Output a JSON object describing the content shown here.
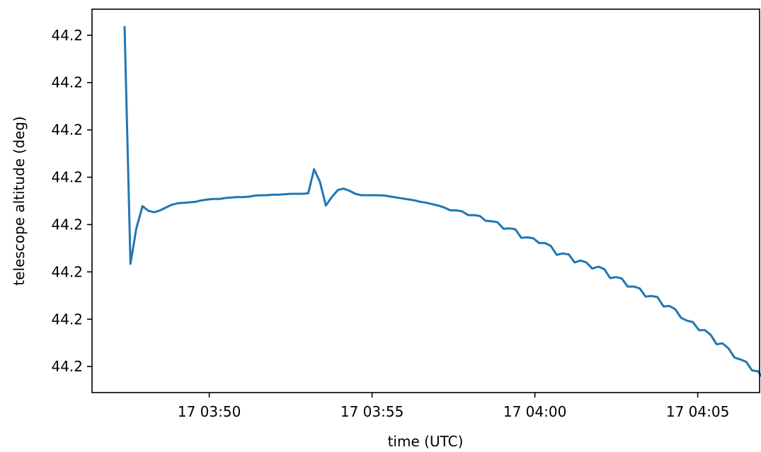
{
  "chart_data": {
    "type": "line",
    "title": "",
    "xlabel": "time (UTC)",
    "ylabel": "telescope altitude (deg)",
    "grid": false,
    "legend": "none",
    "x_tick_labels": [
      "17 03:50",
      "17 03:55",
      "17 04:00",
      "17 04:05"
    ],
    "x_tick_values_min": [
      2.6,
      7.6,
      12.6,
      17.6
    ],
    "y_tick_labels": [
      "44.2",
      "44.2",
      "44.2",
      "44.2",
      "44.2",
      "44.2",
      "44.2",
      "44.2"
    ],
    "y_tick_values": [
      7,
      6,
      5,
      4,
      3,
      2,
      1,
      0
    ],
    "xlim_min": [
      -1.0,
      19.5
    ],
    "ylim": [
      -0.55,
      7.55
    ],
    "series": [
      {
        "color": "#1f77b4",
        "x_min": [
          0.0,
          0.18,
          0.36,
          0.55,
          0.73,
          0.91,
          1.09,
          1.27,
          1.45,
          1.64,
          1.82,
          2.0,
          2.18,
          2.36,
          2.55,
          2.73,
          2.91,
          3.09,
          3.27,
          3.45,
          3.64,
          3.82,
          4.0,
          4.18,
          4.36,
          4.55,
          4.73,
          4.91,
          5.09,
          5.27,
          5.45,
          5.64,
          5.82,
          6.0,
          6.18,
          6.36,
          6.55,
          6.73,
          6.91,
          7.09,
          7.27,
          7.45,
          7.64,
          7.82,
          8.0,
          8.18,
          8.36,
          8.55,
          8.73,
          8.91,
          9.09,
          9.27,
          9.45,
          9.64,
          9.82,
          10.0,
          10.18,
          10.36,
          10.55,
          10.73,
          10.91,
          11.09,
          11.27,
          11.45,
          11.64,
          11.82,
          12.0,
          12.18,
          12.36,
          12.55,
          12.73,
          12.91,
          13.09,
          13.27,
          13.45,
          13.64,
          13.82,
          14.0,
          14.18,
          14.36,
          14.55,
          14.73,
          14.91,
          15.09,
          15.27,
          15.45,
          15.64,
          15.82,
          16.0,
          16.18,
          16.36,
          16.55,
          16.73,
          16.91,
          17.09,
          17.27,
          17.45,
          17.64,
          17.82,
          18.0,
          18.18,
          18.36,
          18.55,
          18.73,
          18.91,
          19.09,
          19.27,
          19.45,
          19.64,
          19.82,
          20.0,
          20.18
        ],
        "y": [
          7.17,
          2.17,
          2.92,
          3.39,
          3.29,
          3.26,
          3.3,
          3.36,
          3.42,
          3.45,
          3.46,
          3.47,
          3.48,
          3.51,
          3.53,
          3.54,
          3.54,
          3.56,
          3.57,
          3.58,
          3.58,
          3.59,
          3.61,
          3.62,
          3.62,
          3.63,
          3.63,
          3.64,
          3.65,
          3.65,
          3.65,
          3.66,
          4.17,
          3.9,
          3.4,
          3.58,
          3.73,
          3.76,
          3.71,
          3.65,
          3.62,
          3.62,
          3.62,
          3.62,
          3.61,
          3.59,
          3.57,
          3.55,
          3.53,
          3.51,
          3.48,
          3.46,
          3.43,
          3.4,
          3.36,
          3.3,
          3.3,
          3.28,
          3.2,
          3.2,
          3.18,
          3.08,
          3.07,
          3.05,
          2.91,
          2.92,
          2.9,
          2.72,
          2.73,
          2.71,
          2.61,
          2.61,
          2.55,
          2.36,
          2.39,
          2.37,
          2.2,
          2.24,
          2.2,
          2.07,
          2.11,
          2.06,
          1.87,
          1.89,
          1.86,
          1.69,
          1.69,
          1.65,
          1.48,
          1.49,
          1.47,
          1.27,
          1.28,
          1.21,
          1.03,
          0.97,
          0.94,
          0.77,
          0.77,
          0.67,
          0.47,
          0.49,
          0.38,
          0.19,
          0.15,
          0.1,
          -0.08,
          -0.1,
          -0.28,
          -0.35,
          -0.38,
          -0.53,
          -0.6
        ]
      }
    ]
  }
}
